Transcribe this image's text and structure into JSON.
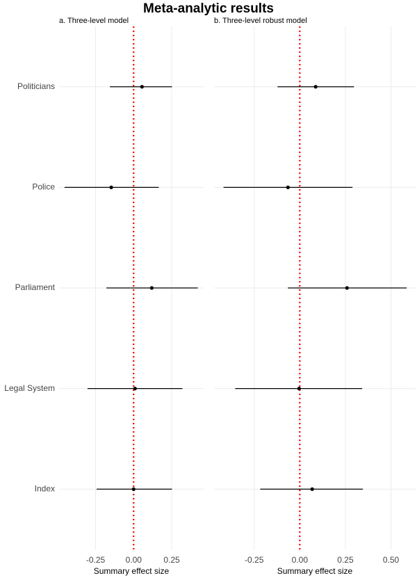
{
  "title": "Meta-analytic results",
  "chart_data": [
    {
      "type": "forest",
      "title": "a. Three-level model",
      "x_label": "Summary effect size",
      "categories": [
        "Politicians",
        "Police",
        "Parliament",
        "Legal System",
        "Index"
      ],
      "values": [
        0.055,
        -0.147,
        0.119,
        0.009,
        0.0
      ],
      "lower": [
        -0.156,
        -0.454,
        -0.179,
        -0.303,
        -0.243
      ],
      "upper": [
        0.252,
        0.165,
        0.422,
        0.321,
        0.252
      ],
      "xlim": [
        -0.49,
        0.46
      ],
      "xticks": [
        -0.25,
        {
          "value": 0,
          "label": "0.00"
        },
        0.25
      ],
      "reference": 0,
      "reference_color": "#ff0000",
      "color": "#000000",
      "grid": true
    },
    {
      "type": "forest",
      "title": "b. Three-level robust model",
      "x_label": "Summary effect size",
      "values": [
        0.087,
        -0.065,
        0.259,
        -0.004,
        0.068
      ],
      "lower": [
        -0.122,
        -0.418,
        -0.065,
        -0.354,
        -0.217
      ],
      "upper": [
        0.297,
        0.289,
        0.586,
        0.342,
        0.346
      ],
      "xlim": [
        -0.47,
        0.635
      ],
      "xticks": [
        -0.25,
        {
          "value": 0,
          "label": "0.00"
        },
        0.25,
        {
          "value": 0.5,
          "label": "0.50"
        }
      ],
      "reference": 0,
      "reference_color": "#ff0000",
      "color": "#000000",
      "grid": true
    }
  ]
}
